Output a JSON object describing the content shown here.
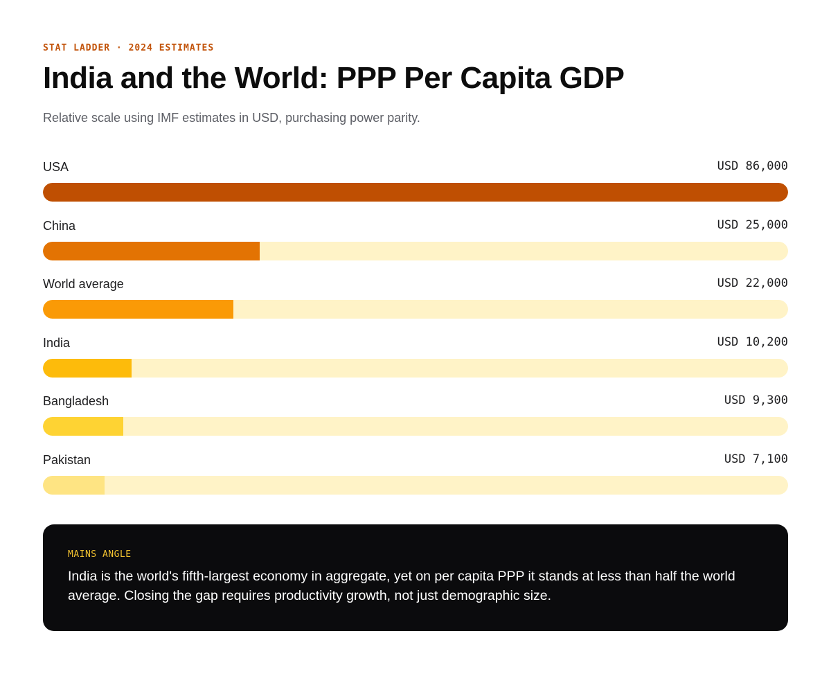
{
  "header": {
    "eyebrow": "STAT LADDER · 2024 ESTIMATES",
    "title": "India and the World: PPP Per Capita GDP",
    "subtitle": "Relative scale using IMF estimates in USD, purchasing power parity."
  },
  "chart_data": {
    "type": "bar",
    "orientation": "horizontal",
    "title": "India and the World: PPP Per Capita GDP",
    "subtitle": "Relative scale using IMF estimates in USD, purchasing power parity.",
    "categories": [
      "USA",
      "China",
      "World average",
      "India",
      "Bangladesh",
      "Pakistan"
    ],
    "values": [
      86000,
      25000,
      22000,
      10200,
      9300,
      7100
    ],
    "value_labels": [
      "USD 86,000",
      "USD 25,000",
      "USD 22,000",
      "USD 10,200",
      "USD 9,300",
      "USD 7,100"
    ],
    "xlim": [
      0,
      86000
    ],
    "colors": [
      "#bf4f02",
      "#e37303",
      "#fa9a06",
      "#fdbb0b",
      "#fed333",
      "#fee483"
    ],
    "track_color": "#fff3c7",
    "grid": false,
    "legend": "none"
  },
  "callout": {
    "label": "MAINS ANGLE",
    "text": "India is the world's fifth-largest economy in aggregate, yet on per capita PPP it stands at less than half the world average. Closing the gap requires productivity growth, not just demographic size."
  }
}
